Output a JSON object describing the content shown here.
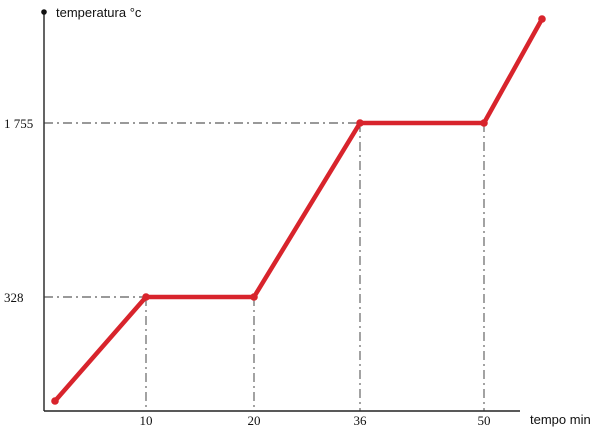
{
  "chart_data": {
    "type": "line",
    "ylabel": "temperatura °c",
    "xlabel": "tempo min",
    "x_ticks": [
      "10",
      "20",
      "36",
      "50"
    ],
    "y_ticks": [
      "328",
      "1 755"
    ],
    "grid": "dashed guide lines at labeled ticks",
    "series": [
      {
        "color": "#d8242c",
        "points": [
          {
            "x": "0",
            "y": "<328"
          },
          {
            "x": "10",
            "y": "328"
          },
          {
            "x": "20",
            "y": "328"
          },
          {
            "x": "36",
            "y": "1 755"
          },
          {
            "x": "50",
            "y": "1 755"
          },
          {
            "x": "end",
            "y": ">1 755"
          }
        ]
      }
    ]
  }
}
